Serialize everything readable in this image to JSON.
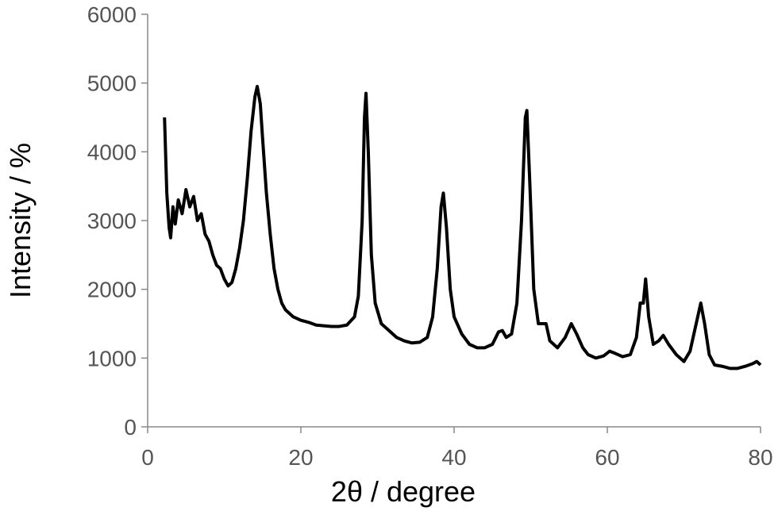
{
  "chart_data": {
    "type": "line",
    "x_label": "2θ / degree",
    "y_label": "Intensity / %",
    "xlim": [
      0,
      80
    ],
    "xticks": [
      0,
      20,
      40,
      60,
      80
    ],
    "ylim": [
      0,
      6000
    ],
    "yticks": [
      0,
      1000,
      2000,
      3000,
      4000,
      5000,
      6000
    ],
    "grid": false,
    "series": [
      {
        "color": "#000000",
        "x": [
          2.2,
          2.5,
          2.8,
          3.0,
          3.3,
          3.6,
          4.0,
          4.5,
          5.0,
          5.5,
          6.0,
          6.5,
          7.0,
          7.5,
          8.0,
          8.5,
          9.0,
          9.5,
          10.0,
          10.5,
          11.0,
          11.5,
          12.0,
          12.5,
          13.0,
          13.5,
          14.0,
          14.3,
          14.7,
          15.0,
          15.5,
          16.0,
          16.5,
          17.0,
          17.5,
          18.0,
          19,
          20,
          21,
          22,
          23,
          24,
          25,
          26,
          27,
          27.5,
          28.0,
          28.3,
          28.5,
          28.8,
          29.2,
          29.7,
          30.5,
          31.5,
          32.5,
          33.5,
          34.5,
          35.5,
          36.5,
          37.2,
          37.8,
          38.3,
          38.6,
          39.0,
          39.5,
          40.0,
          41,
          42,
          43,
          44,
          45,
          45.8,
          46.3,
          46.8,
          47.5,
          48.2,
          48.8,
          49.3,
          49.5,
          49.9,
          50.4,
          51.0,
          51.6,
          52.0,
          52.5,
          53.5,
          54.5,
          55.3,
          56.0,
          56.8,
          57.5,
          58.5,
          59.5,
          60.3,
          61.0,
          62.0,
          63.0,
          63.8,
          64.3,
          64.7,
          65.0,
          65.4,
          66.0,
          66.7,
          67.3,
          68.0,
          69.0,
          70.0,
          70.8,
          71.5,
          72.2,
          72.7,
          73.3,
          74.0,
          75,
          76,
          77,
          78,
          79,
          79.5,
          80
        ],
        "values": [
          4500,
          3400,
          2900,
          2750,
          3200,
          2950,
          3300,
          3100,
          3450,
          3200,
          3350,
          3000,
          3100,
          2800,
          2700,
          2500,
          2350,
          2300,
          2150,
          2050,
          2100,
          2300,
          2600,
          3000,
          3600,
          4300,
          4800,
          4950,
          4700,
          4200,
          3400,
          2800,
          2300,
          2000,
          1800,
          1700,
          1600,
          1550,
          1520,
          1480,
          1470,
          1460,
          1460,
          1480,
          1600,
          1900,
          3000,
          4500,
          4850,
          4000,
          2500,
          1800,
          1500,
          1400,
          1300,
          1250,
          1220,
          1230,
          1300,
          1600,
          2300,
          3200,
          3400,
          2900,
          2000,
          1600,
          1350,
          1200,
          1150,
          1150,
          1200,
          1380,
          1400,
          1300,
          1350,
          1800,
          3000,
          4500,
          4600,
          3500,
          2000,
          1500,
          1500,
          1500,
          1250,
          1150,
          1300,
          1500,
          1350,
          1150,
          1050,
          1000,
          1030,
          1100,
          1070,
          1020,
          1050,
          1300,
          1800,
          1800,
          2150,
          1600,
          1200,
          1250,
          1330,
          1200,
          1050,
          950,
          1100,
          1450,
          1800,
          1500,
          1050,
          900,
          880,
          850,
          850,
          880,
          920,
          950,
          900
        ]
      }
    ]
  }
}
